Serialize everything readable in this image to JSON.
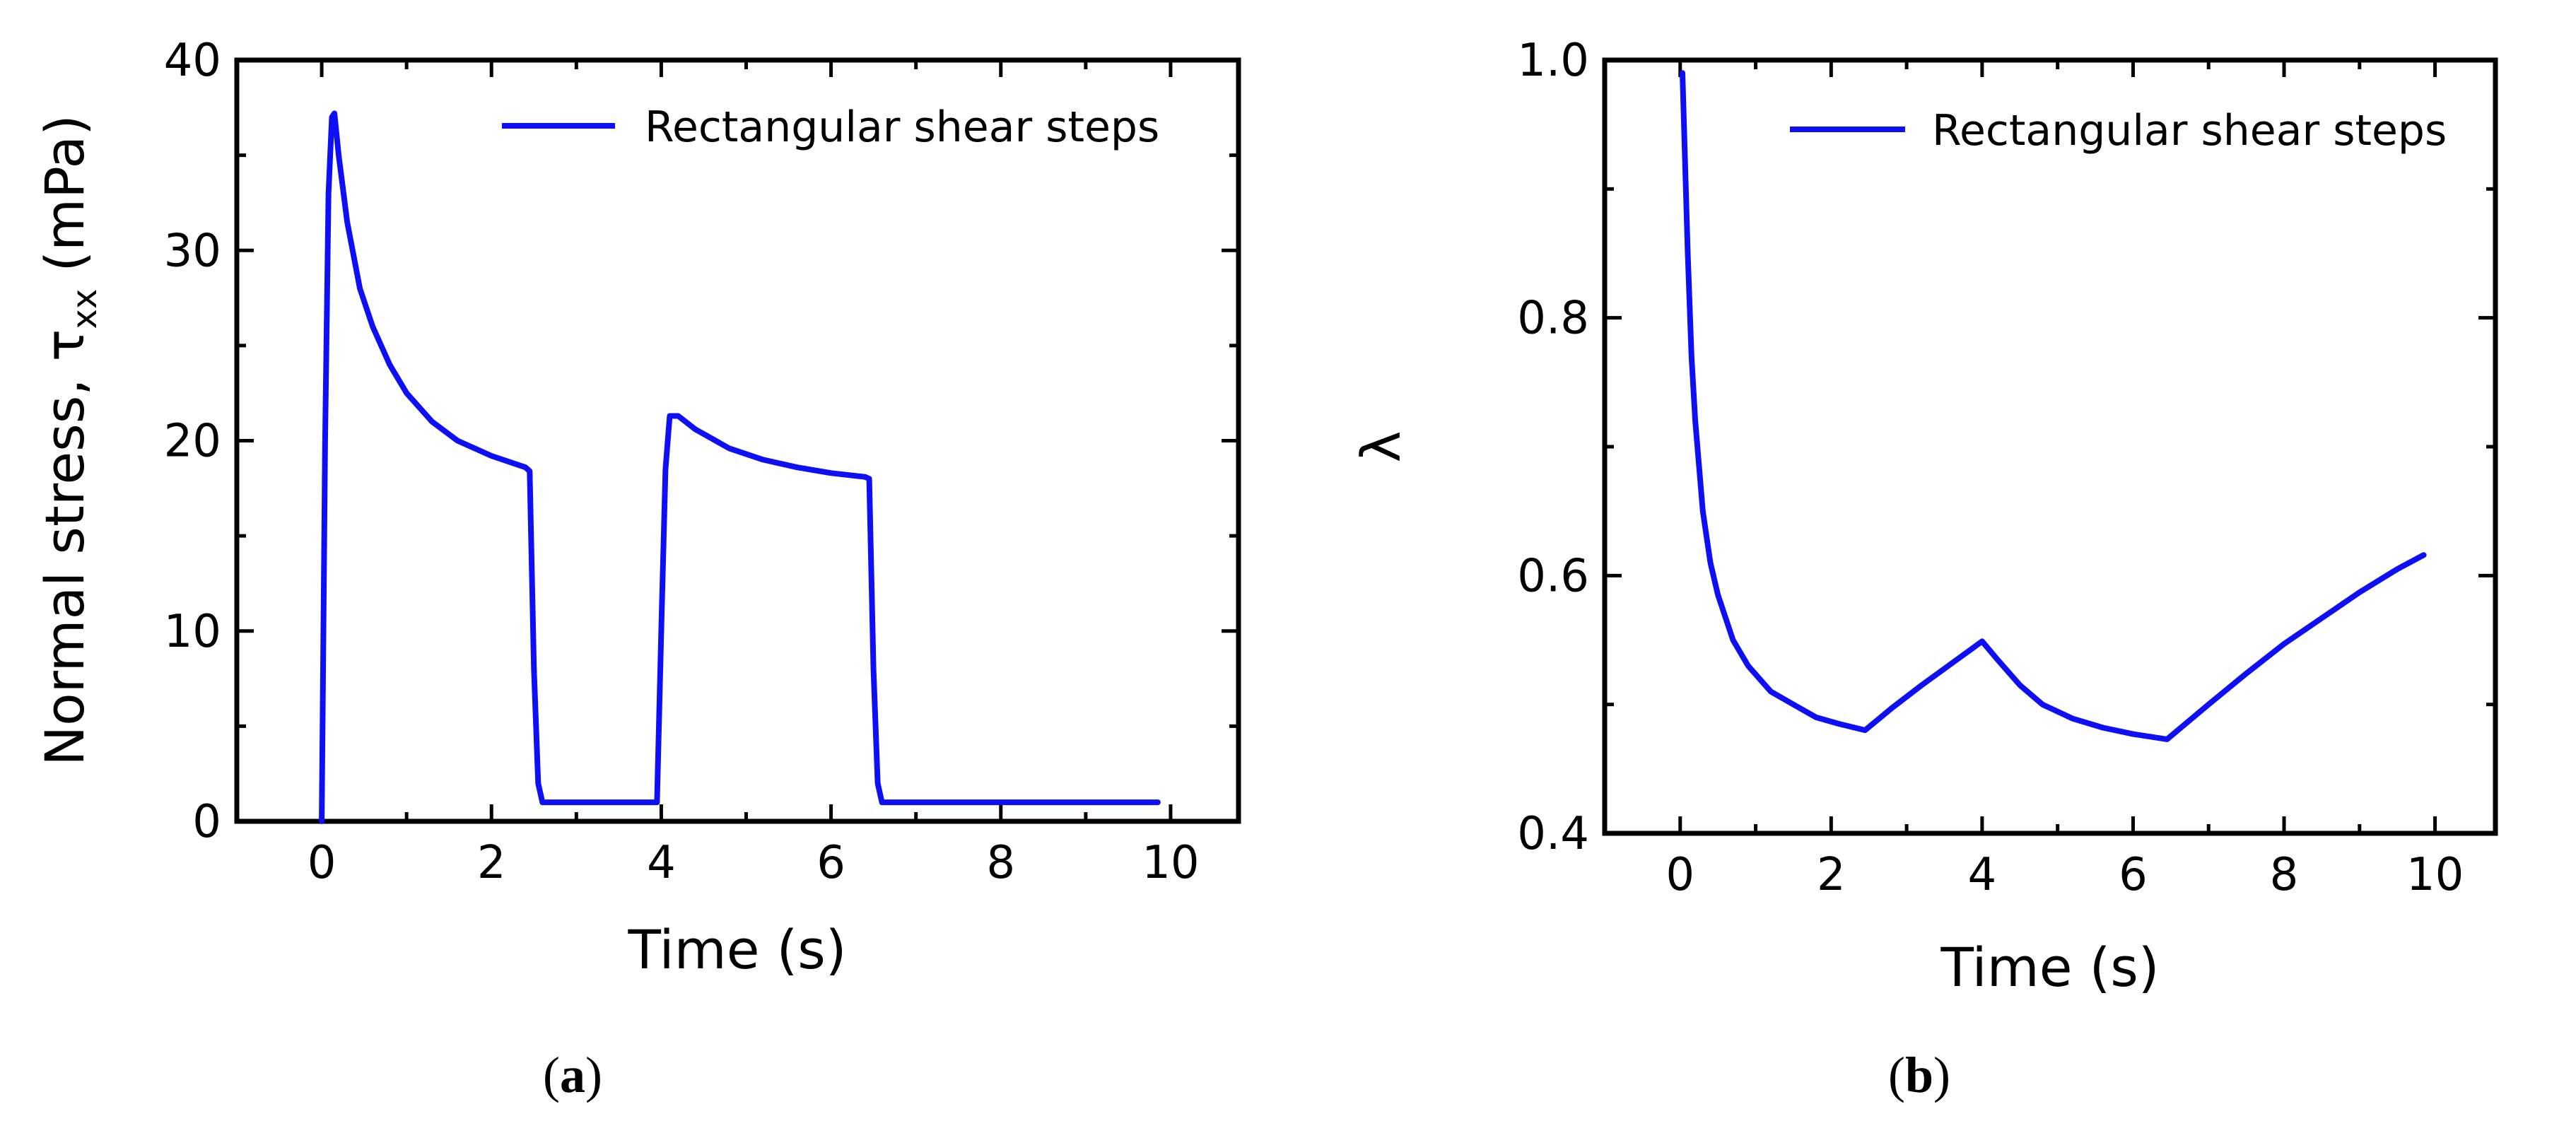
{
  "colors": {
    "series": "#0f0ff5",
    "axis": "#000000"
  },
  "chart_data": [
    {
      "type": "line",
      "panel_label": "(a)",
      "panel_label_letter": "a",
      "xlabel": "Time (s)",
      "ylabel_main": "Normal stress, τ",
      "ylabel_sub": "xx",
      "ylabel_unit": " (mPa)",
      "xlim": [
        -1,
        10.8
      ],
      "ylim": [
        0,
        40
      ],
      "xticks": [
        0,
        2,
        4,
        6,
        8,
        10
      ],
      "yticks": [
        0,
        10,
        20,
        30,
        40
      ],
      "legend": "top-right",
      "grid": false,
      "series": [
        {
          "name": "Rectangular shear steps",
          "x": [
            0,
            0.04,
            0.08,
            0.12,
            0.15,
            0.2,
            0.3,
            0.45,
            0.6,
            0.8,
            1.0,
            1.3,
            1.6,
            2.0,
            2.4,
            2.45,
            2.5,
            2.55,
            2.6,
            3.0,
            3.5,
            3.95,
            4.0,
            4.05,
            4.1,
            4.2,
            4.4,
            4.8,
            5.2,
            5.6,
            6.0,
            6.4,
            6.45,
            6.5,
            6.55,
            6.6,
            7.0,
            8.0,
            9.0,
            9.85
          ],
          "y": [
            0,
            20,
            33,
            37,
            37.2,
            35,
            31.5,
            28,
            26,
            24,
            22.5,
            21,
            20,
            19.2,
            18.6,
            18.4,
            8,
            2,
            1,
            1,
            1,
            1,
            10,
            18.5,
            21.3,
            21.3,
            20.6,
            19.6,
            19,
            18.6,
            18.3,
            18.1,
            18,
            8,
            2,
            1,
            1,
            1,
            1,
            1
          ]
        }
      ]
    },
    {
      "type": "line",
      "panel_label": "(b)",
      "panel_label_letter": "b",
      "xlabel": "Time (s)",
      "ylabel_main": "λ",
      "xlim": [
        -1,
        10.8
      ],
      "ylim": [
        0.4,
        1.0
      ],
      "xticks": [
        0,
        2,
        4,
        6,
        8,
        10
      ],
      "yticks": [
        0.4,
        0.6,
        0.8,
        1.0
      ],
      "ytick_labels": [
        "0.4",
        "0.6",
        "0.8",
        "1.0"
      ],
      "legend": "top-right",
      "grid": false,
      "series": [
        {
          "name": "Rectangular shear steps",
          "x": [
            0.03,
            0.06,
            0.1,
            0.15,
            0.2,
            0.3,
            0.4,
            0.5,
            0.7,
            0.9,
            1.2,
            1.5,
            1.8,
            2.1,
            2.45,
            2.8,
            3.2,
            3.6,
            4.0,
            4.2,
            4.5,
            4.8,
            5.2,
            5.6,
            6.0,
            6.45,
            7.0,
            7.5,
            8.0,
            8.5,
            9.0,
            9.5,
            9.85
          ],
          "y": [
            0.99,
            0.93,
            0.85,
            0.77,
            0.72,
            0.65,
            0.61,
            0.585,
            0.55,
            0.53,
            0.51,
            0.5,
            0.49,
            0.485,
            0.48,
            0.497,
            0.515,
            0.532,
            0.549,
            0.535,
            0.515,
            0.5,
            0.489,
            0.482,
            0.477,
            0.473,
            0.5,
            0.524,
            0.547,
            0.567,
            0.587,
            0.605,
            0.616
          ]
        }
      ]
    }
  ]
}
